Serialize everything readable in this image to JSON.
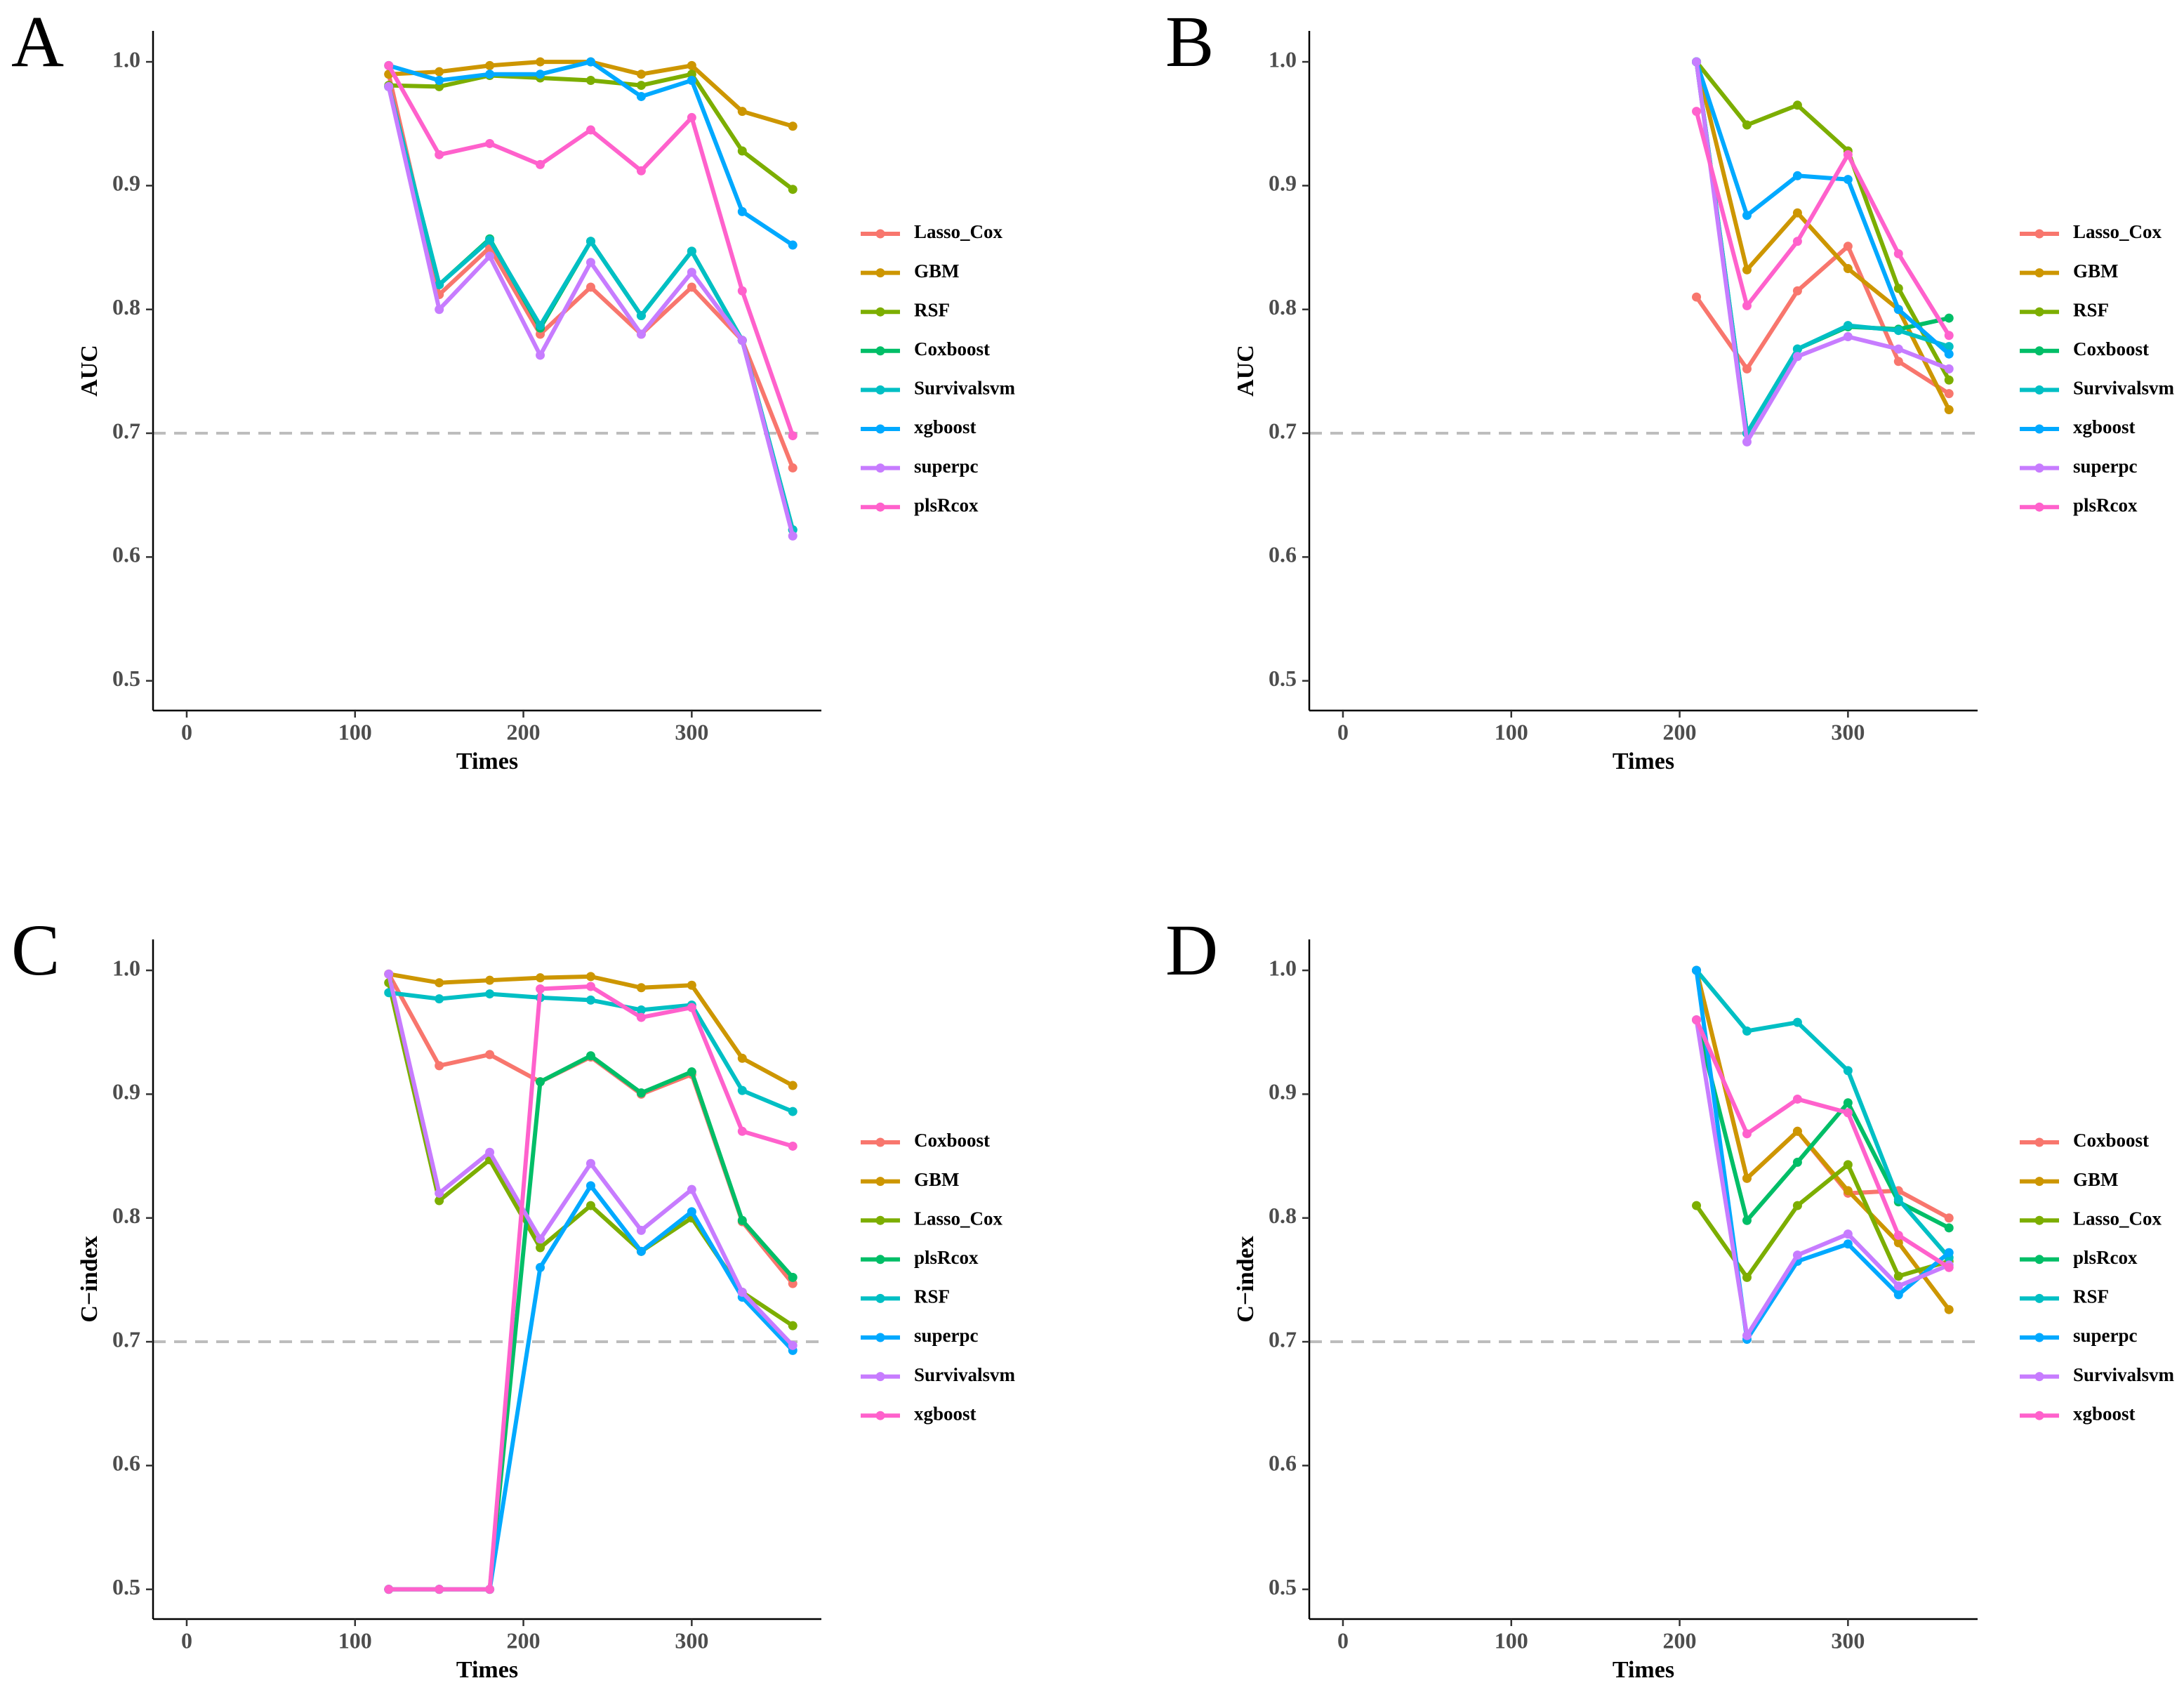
{
  "chart_data": [
    {
      "type": "line",
      "panel": "A",
      "xlabel": "Times",
      "ylabel": "AUC",
      "x": [
        120,
        150,
        180,
        210,
        240,
        270,
        300,
        330,
        360
      ],
      "xlim": [
        -20,
        377
      ],
      "ylim": [
        0.476,
        1.025
      ],
      "xticks": [
        0,
        100,
        200,
        300
      ],
      "yticks": [
        0.5,
        0.6,
        0.7,
        0.8,
        0.9,
        {
          "value": 1,
          "label": "1.0"
        }
      ],
      "hline": 0.7,
      "series": [
        {
          "name": "Lasso_Cox",
          "color": "#F8766D",
          "values": [
            0.99,
            0.812,
            0.85,
            0.78,
            0.818,
            0.78,
            0.818,
            0.775,
            0.672
          ]
        },
        {
          "name": "GBM",
          "color": "#CD9600",
          "values": [
            0.99,
            0.992,
            0.997,
            1.0,
            1.0,
            0.99,
            0.997,
            0.96,
            0.948
          ]
        },
        {
          "name": "RSF",
          "color": "#7CAE00",
          "values": [
            0.981,
            0.98,
            0.989,
            0.987,
            0.985,
            0.981,
            0.99,
            0.928,
            0.897
          ]
        },
        {
          "name": "Coxboost",
          "color": "#00BE67",
          "values": [
            0.98,
            0.82,
            0.857,
            0.785,
            0.855,
            0.795,
            0.847,
            0.775,
            0.622
          ]
        },
        {
          "name": "Survivalsvm",
          "color": "#00BFC4",
          "values": [
            0.98,
            0.82,
            0.856,
            0.787,
            0.855,
            0.795,
            0.847,
            0.775,
            0.622
          ]
        },
        {
          "name": "xgboost",
          "color": "#00A9FF",
          "values": [
            0.997,
            0.985,
            0.99,
            0.99,
            1.0,
            0.972,
            0.985,
            0.879,
            0.852
          ]
        },
        {
          "name": "superpc",
          "color": "#C77CFF",
          "values": [
            0.98,
            0.8,
            0.843,
            0.763,
            0.838,
            0.78,
            0.83,
            0.775,
            0.617
          ]
        },
        {
          "name": "plsRcox",
          "color": "#FF61CC",
          "values": [
            0.997,
            0.925,
            0.934,
            0.917,
            0.945,
            0.912,
            0.955,
            0.815,
            0.698
          ]
        }
      ]
    },
    {
      "type": "line",
      "panel": "B",
      "xlabel": "Times",
      "ylabel": "AUC",
      "x": [
        210,
        240,
        270,
        300,
        330,
        360
      ],
      "xlim": [
        -20,
        377
      ],
      "ylim": [
        0.476,
        1.025
      ],
      "xticks": [
        0,
        100,
        200,
        300
      ],
      "yticks": [
        0.5,
        0.6,
        0.7,
        0.8,
        0.9,
        {
          "value": 1,
          "label": "1.0"
        }
      ],
      "hline": 0.7,
      "series": [
        {
          "name": "Lasso_Cox",
          "color": "#F8766D",
          "values": [
            0.81,
            0.752,
            0.815,
            0.851,
            0.758,
            0.732
          ]
        },
        {
          "name": "GBM",
          "color": "#CD9600",
          "values": [
            1.0,
            0.832,
            0.878,
            0.833,
            0.8,
            0.719
          ]
        },
        {
          "name": "RSF",
          "color": "#7CAE00",
          "values": [
            1.0,
            0.949,
            0.965,
            0.928,
            0.817,
            0.743
          ]
        },
        {
          "name": "Coxboost",
          "color": "#00BE67",
          "values": [
            1.0,
            0.7,
            0.768,
            0.786,
            0.784,
            0.793
          ]
        },
        {
          "name": "Survivalsvm",
          "color": "#00BFC4",
          "values": [
            1.0,
            0.7,
            0.768,
            0.787,
            0.783,
            0.77
          ]
        },
        {
          "name": "xgboost",
          "color": "#00A9FF",
          "values": [
            1.0,
            0.876,
            0.908,
            0.905,
            0.8,
            0.764
          ]
        },
        {
          "name": "superpc",
          "color": "#C77CFF",
          "values": [
            1.0,
            0.693,
            0.762,
            0.778,
            0.768,
            0.752
          ]
        },
        {
          "name": "plsRcox",
          "color": "#FF61CC",
          "values": [
            0.96,
            0.803,
            0.855,
            0.925,
            0.845,
            0.779
          ]
        }
      ]
    },
    {
      "type": "line",
      "panel": "C",
      "xlabel": "Times",
      "ylabel": "C−index",
      "x": [
        120,
        150,
        180,
        210,
        240,
        270,
        300,
        330,
        360
      ],
      "xlim": [
        -20,
        377
      ],
      "ylim": [
        0.476,
        1.025
      ],
      "xticks": [
        0,
        100,
        200,
        300
      ],
      "yticks": [
        0.5,
        0.6,
        0.7,
        0.8,
        0.9,
        {
          "value": 1,
          "label": "1.0"
        }
      ],
      "hline": 0.7,
      "series": [
        {
          "name": "Coxboost",
          "color": "#F8766D",
          "values": [
            0.997,
            0.923,
            0.932,
            0.91,
            0.93,
            0.9,
            0.916,
            0.797,
            0.747
          ]
        },
        {
          "name": "GBM",
          "color": "#CD9600",
          "values": [
            0.997,
            0.99,
            0.992,
            0.994,
            0.995,
            0.986,
            0.988,
            0.929,
            0.907
          ]
        },
        {
          "name": "Lasso_Cox",
          "color": "#7CAE00",
          "values": [
            0.99,
            0.814,
            0.847,
            0.776,
            0.81,
            0.773,
            0.8,
            0.74,
            0.713
          ]
        },
        {
          "name": "plsRcox",
          "color": "#00BE67",
          "values": [
            0.5,
            0.5,
            0.5,
            0.91,
            0.931,
            0.901,
            0.918,
            0.798,
            0.752
          ]
        },
        {
          "name": "RSF",
          "color": "#00BFC4",
          "values": [
            0.982,
            0.977,
            0.981,
            0.978,
            0.976,
            0.968,
            0.972,
            0.903,
            0.886
          ]
        },
        {
          "name": "superpc",
          "color": "#00A9FF",
          "values": [
            0.5,
            0.5,
            0.5,
            0.76,
            0.826,
            0.773,
            0.805,
            0.736,
            0.693
          ]
        },
        {
          "name": "Survivalsvm",
          "color": "#C77CFF",
          "values": [
            0.997,
            0.82,
            0.853,
            0.783,
            0.844,
            0.79,
            0.823,
            0.74,
            0.697
          ]
        },
        {
          "name": "xgboost",
          "color": "#FF61CC",
          "values": [
            0.5,
            0.5,
            0.5,
            0.985,
            0.987,
            0.962,
            0.97,
            0.87,
            0.858
          ]
        }
      ]
    },
    {
      "type": "line",
      "panel": "D",
      "xlabel": "Times",
      "ylabel": "C−index",
      "x": [
        210,
        240,
        270,
        300,
        330,
        360
      ],
      "xlim": [
        -20,
        377
      ],
      "ylim": [
        0.476,
        1.025
      ],
      "xticks": [
        0,
        100,
        200,
        300
      ],
      "yticks": [
        0.5,
        0.6,
        0.7,
        0.8,
        0.9,
        {
          "value": 1,
          "label": "1.0"
        }
      ],
      "hline": 0.7,
      "series": [
        {
          "name": "Coxboost",
          "color": "#F8766D",
          "values": [
            1.0,
            0.832,
            0.87,
            0.82,
            0.822,
            0.8
          ]
        },
        {
          "name": "GBM",
          "color": "#CD9600",
          "values": [
            1.0,
            0.832,
            0.87,
            0.822,
            0.78,
            0.726
          ]
        },
        {
          "name": "Lasso_Cox",
          "color": "#7CAE00",
          "values": [
            0.81,
            0.752,
            0.81,
            0.843,
            0.753,
            0.765
          ]
        },
        {
          "name": "plsRcox",
          "color": "#00BE67",
          "values": [
            0.96,
            0.798,
            0.845,
            0.893,
            0.813,
            0.792
          ]
        },
        {
          "name": "RSF",
          "color": "#00BFC4",
          "values": [
            1.0,
            0.951,
            0.958,
            0.919,
            0.815,
            0.768
          ]
        },
        {
          "name": "superpc",
          "color": "#00A9FF",
          "values": [
            1.0,
            0.702,
            0.765,
            0.779,
            0.738,
            0.772
          ]
        },
        {
          "name": "Survivalsvm",
          "color": "#C77CFF",
          "values": [
            0.96,
            0.705,
            0.77,
            0.787,
            0.745,
            0.762
          ]
        },
        {
          "name": "xgboost",
          "color": "#FF61CC",
          "values": [
            0.96,
            0.868,
            0.896,
            0.885,
            0.786,
            0.76
          ]
        }
      ]
    }
  ]
}
